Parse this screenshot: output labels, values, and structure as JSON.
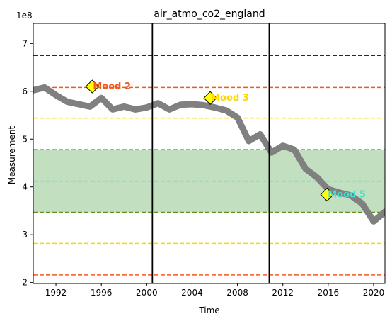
{
  "chart_data": {
    "type": "line",
    "title": "air_atmo_co2_england",
    "xlabel": "Time",
    "ylabel": "Measurement",
    "y_offset_label": "1e8",
    "xlim": [
      1990.0,
      2021.0
    ],
    "ylim": [
      1.98,
      7.42
    ],
    "x_ticks": [
      1992,
      1996,
      2000,
      2004,
      2008,
      2012,
      2016,
      2020
    ],
    "y_ticks": [
      2,
      3,
      4,
      5,
      6,
      7
    ],
    "grid": false,
    "series": [
      {
        "color": "#808080",
        "x": [
          1990.0,
          1991.0,
          1992.0,
          1993.0,
          1994.0,
          1995.0,
          1996.0,
          1997.0,
          1998.0,
          1999.0,
          2000.0,
          2001.0,
          2002.0,
          2003.0,
          2004.0,
          2005.0,
          2006.0,
          2007.0,
          2008.0,
          2009.0,
          2010.0,
          2011.0,
          2012.0,
          2013.0,
          2014.0,
          2015.0,
          2016.0,
          2017.0,
          2018.0,
          2019.0,
          2020.0,
          2021.0
        ],
        "y": [
          6.02,
          6.08,
          5.92,
          5.78,
          5.73,
          5.68,
          5.86,
          5.62,
          5.68,
          5.62,
          5.66,
          5.75,
          5.62,
          5.72,
          5.73,
          5.71,
          5.66,
          5.6,
          5.45,
          4.96,
          5.1,
          4.72,
          4.86,
          4.78,
          4.38,
          4.2,
          3.95,
          3.88,
          3.82,
          3.65,
          3.28,
          3.48
        ]
      }
    ],
    "horizontal_lines": [
      {
        "y": 6.75,
        "color": "#8b0000"
      },
      {
        "y": 6.08,
        "color": "#f05a1e"
      },
      {
        "y": 5.44,
        "color": "#ffd700"
      },
      {
        "y": 4.78,
        "color": "#6b8e23"
      },
      {
        "y": 4.12,
        "color": "#40e0d0"
      },
      {
        "y": 3.47,
        "color": "#6b8e23"
      },
      {
        "y": 2.82,
        "color": "#ffd700"
      },
      {
        "y": 2.16,
        "color": "#f05a1e"
      }
    ],
    "shaded_band": {
      "y": [
        3.47,
        4.78
      ],
      "color": "#c2e0c0"
    },
    "vertical_lines": [
      {
        "x": 2000.5,
        "color": "#000000"
      },
      {
        "x": 2010.8,
        "color": "#000000"
      }
    ],
    "annotations": [
      {
        "text": "Mood 2",
        "x": 1995.2,
        "y": 6.1,
        "color": "#f05a1e"
      },
      {
        "text": "Mood 3",
        "x": 2005.6,
        "y": 5.86,
        "color": "#ffd700"
      },
      {
        "text": "Mood 5",
        "x": 2015.9,
        "y": 3.84,
        "color": "#40e0d0"
      }
    ],
    "marker_color": "#ffff00"
  }
}
